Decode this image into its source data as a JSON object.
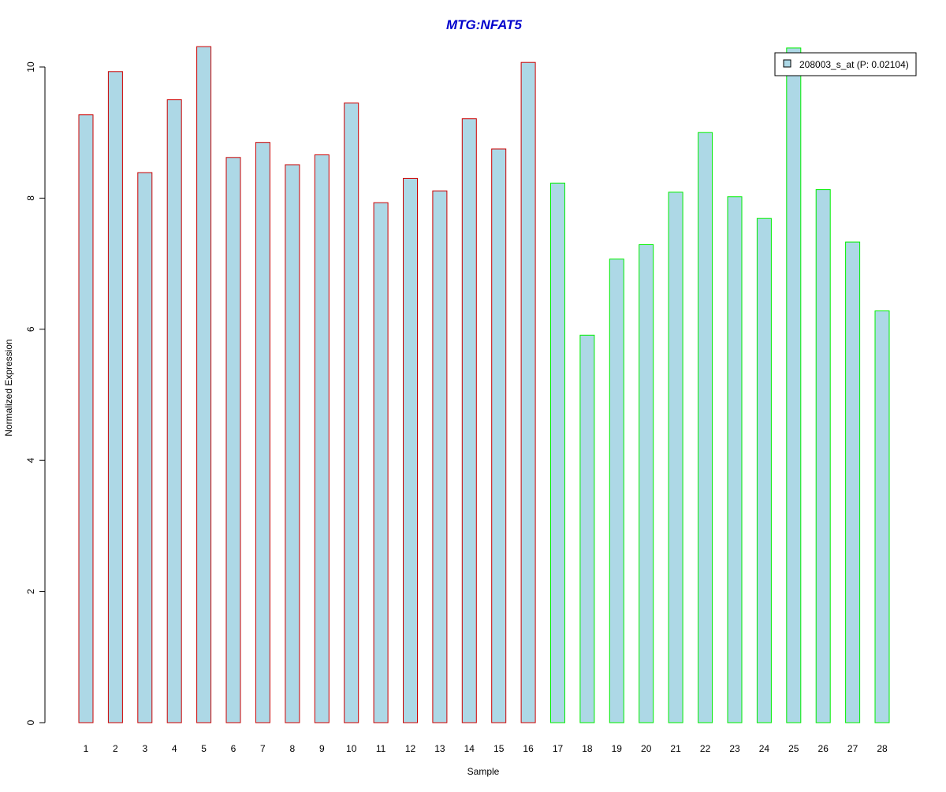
{
  "chart_data": {
    "type": "bar",
    "title": "MTG:NFAT5",
    "xlabel": "Sample",
    "ylabel": "Normalized Expression",
    "ylim": [
      0,
      10.4
    ],
    "yticks": [
      0,
      2,
      4,
      6,
      8,
      10
    ],
    "grid": false,
    "legend_position": "top-right",
    "categories": [
      "1",
      "2",
      "3",
      "4",
      "5",
      "6",
      "7",
      "8",
      "9",
      "10",
      "11",
      "12",
      "13",
      "14",
      "15",
      "16",
      "17",
      "18",
      "19",
      "20",
      "21",
      "22",
      "23",
      "24",
      "25",
      "26",
      "27",
      "28"
    ],
    "series": [
      {
        "name": "208003_s_at (P: 0.02104)",
        "fill": "#add8e6",
        "values": [
          9.27,
          9.93,
          8.39,
          9.5,
          10.31,
          8.62,
          8.85,
          8.51,
          8.66,
          9.45,
          7.93,
          8.3,
          8.11,
          9.21,
          8.75,
          10.07,
          8.23,
          5.91,
          7.07,
          7.29,
          8.09,
          9.0,
          8.02,
          7.69,
          10.29,
          8.13,
          7.33,
          6.28
        ]
      }
    ],
    "groups": [
      {
        "samples": [
          1,
          16
        ],
        "outline": "#cc0000"
      },
      {
        "samples": [
          17,
          28
        ],
        "outline": "#00ee00"
      }
    ]
  },
  "colors": {
    "title": "#0000cc",
    "axis": "#000000"
  }
}
